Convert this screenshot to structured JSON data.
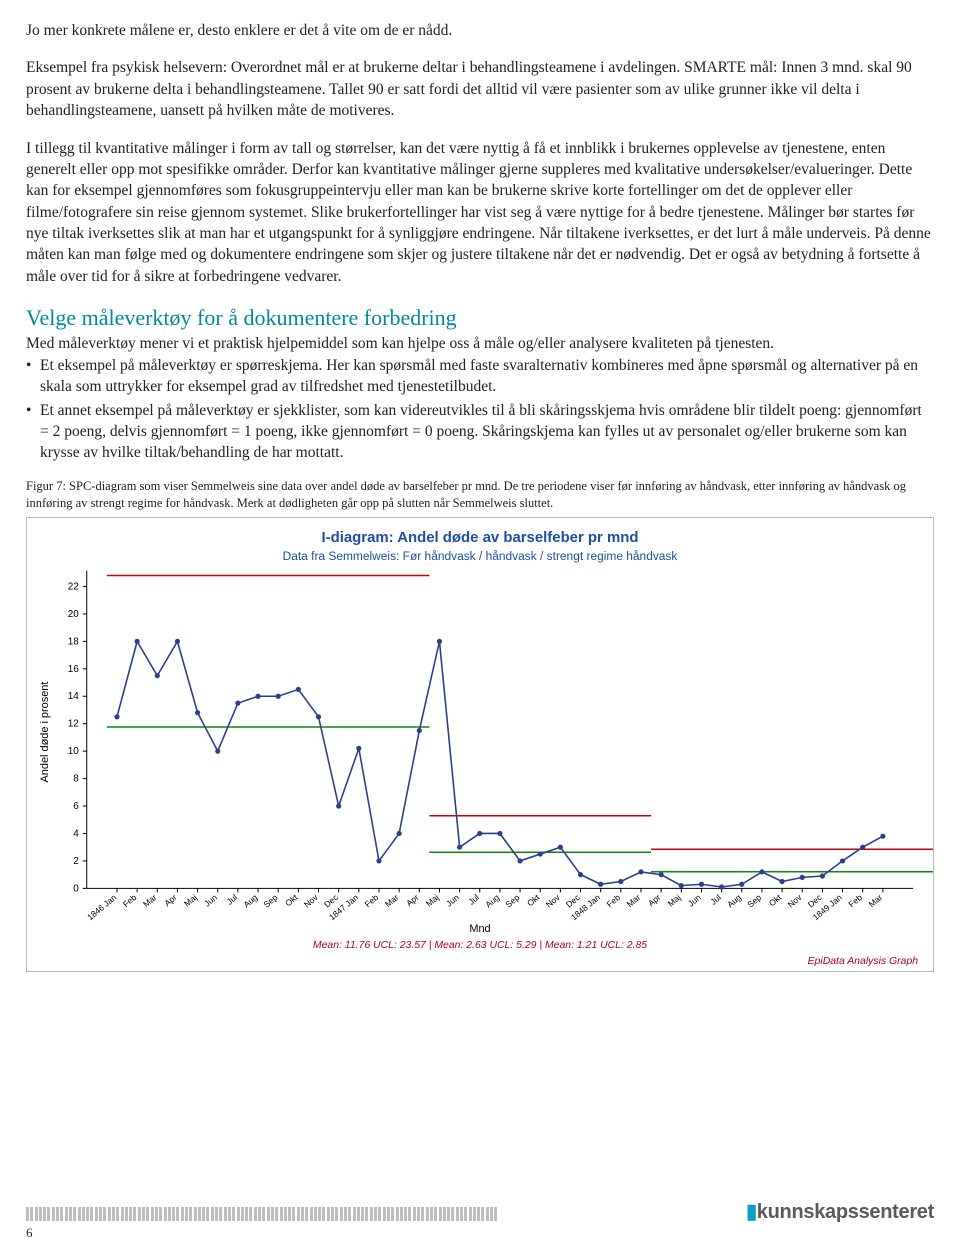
{
  "paragraphs": {
    "p1": "Jo mer konkrete målene er, desto enklere er det å vite om de er nådd.",
    "p2": "Eksempel fra psykisk helsevern: Overordnet mål er at brukerne deltar i behandlingsteamene i avdelingen. SMARTE mål: Innen 3 mnd. skal 90 prosent av brukerne delta i behandlingsteamene. Tallet 90 er satt fordi det alltid vil være pasienter som av ulike grunner ikke vil delta i behandlingsteamene, uansett på hvilken måte de motiveres.",
    "p3": "I tillegg til kvantitative målinger i form av tall og størrelser, kan det være nyttig å få et innblikk i brukernes opplevelse av tjenestene, enten generelt eller opp mot spesifikke områder. Derfor kan kvantitative målinger gjerne suppleres med kvalitative undersøkelser/evalueringer. Dette kan for eksempel gjennomføres som fokusgruppeintervju eller man kan be brukerne skrive korte fortellinger om det de opplever eller filme/fotografere sin reise gjennom systemet. Slike brukerfortellinger har vist seg å være nyttige for å bedre tjenestene. Målinger bør startes før nye tiltak iverksettes slik at man har et utgangspunkt for å synliggjøre endringene. Når tiltakene iverksettes, er det lurt å måle underveis. På denne måten kan man følge med og dokumentere endringene som skjer og justere tiltakene når det er nødvendig. Det er også av betydning å fortsette å måle over tid for å sikre at forbedringene vedvarer.",
    "heading": "Velge måleverktøy for å dokumentere forbedring",
    "p4": "Med måleverktøy mener vi et praktisk hjelpemiddel som kan hjelpe oss å måle og/eller analysere kvaliteten på tjenesten.",
    "li1": "Et eksempel på måleverktøy er spørreskjema. Her kan spørsmål med faste svaralternativ kombineres med åpne spørsmål og alternativer på en skala som uttrykker for eksempel grad av tilfredshet med tjenestetilbudet.",
    "li2": "Et annet eksempel på måleverktøy er sjekklister, som kan videreutvikles til å bli skåringsskjema hvis områdene blir tildelt poeng: gjennomført = 2 poeng, delvis gjennomført = 1 poeng, ikke gjennomført = 0 poeng. Skåringskjema kan fylles ut av personalet og/eller brukerne som kan krysse av hvilke tiltak/behandling de har mottatt."
  },
  "caption": "Figur 7: SPC-diagram som viser Semmelweis sine data over andel døde av barselfeber pr mnd. De tre periodene viser før innføring av håndvask, etter innføring av håndvask og innføring av strengt regime for håndvask. Merk at dødligheten går opp på slutten når Semmelweis sluttet.",
  "chart": {
    "title": "I-diagram: Andel døde av barselfeber pr mnd",
    "subtitle": "Data fra Semmelweis: Før håndvask / håndvask / strengt regime håndvask",
    "y_label": "Andel døde i prosent",
    "x_label": "Mnd",
    "stats": "Mean: 11.76 UCL: 23.57 |   Mean: 2.63 UCL: 5.29 |   Mean: 1.21 UCL: 2.85",
    "credit": "EpiData Analysis Graph",
    "y_ticks": [
      0,
      2,
      4,
      6,
      8,
      10,
      12,
      14,
      16,
      18,
      20,
      22
    ],
    "ylim": [
      0,
      23
    ],
    "line_color": "#2b3f8f",
    "marker_color": "#2b3f8f",
    "mean_color": "#0a8a0a",
    "ucl_color": "#c40000",
    "segments": [
      {
        "mean": 11.76,
        "ucl": 23.57,
        "start": 0,
        "end": 16
      },
      {
        "mean": 2.63,
        "ucl": 5.29,
        "start": 16,
        "end": 27
      },
      {
        "mean": 1.21,
        "ucl": 2.85,
        "start": 27,
        "end": 42
      }
    ],
    "x_labels": [
      "1846 Jan",
      "Feb",
      "Mar",
      "Apr",
      "Maj",
      "Jun",
      "Jul",
      "Aug",
      "Sep",
      "Okt",
      "Nov",
      "Dec",
      "1847 Jan",
      "Feb",
      "Mar",
      "Apr",
      "Maj",
      "Jun",
      "Jul",
      "Aug",
      "Sep",
      "Okt",
      "Nov",
      "Dec",
      "1848 Jan",
      "Feb",
      "Mar",
      "Apr",
      "Maj",
      "Jun",
      "Jul",
      "Aug",
      "Sep",
      "Okt",
      "Nov",
      "Dec",
      "1849 Jan",
      "Feb",
      "Mar"
    ],
    "data": [
      12.5,
      18.0,
      15.5,
      18.0,
      12.8,
      10.0,
      13.5,
      14.0,
      14.0,
      14.5,
      12.5,
      6.0,
      10.2,
      2.0,
      4.0,
      11.5,
      18.0,
      3.0,
      4.0,
      4.0,
      2.0,
      2.5,
      3.0,
      1.0,
      0.3,
      0.5,
      1.2,
      1.0,
      0.2,
      0.3,
      0.1,
      0.3,
      1.2,
      0.5,
      0.8,
      0.9,
      2.0,
      3.0,
      3.8
    ]
  },
  "footer": {
    "logo": "kunnskapssenteret",
    "page": "6"
  }
}
